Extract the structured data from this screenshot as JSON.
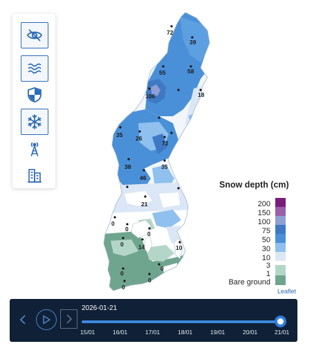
{
  "toolbar": {
    "items": [
      {
        "icon": "eye-slash-icon",
        "active": true
      },
      {
        "icon": "waves-icon",
        "active": true
      },
      {
        "icon": "shield-icon",
        "active": false
      },
      {
        "icon": "snowflake-icon",
        "active": true
      },
      {
        "icon": "radio-tower-icon",
        "active": false
      },
      {
        "icon": "buildings-icon",
        "active": false
      }
    ],
    "accent": "#2d6bb5"
  },
  "map": {
    "region": "Sweden",
    "stations": [
      {
        "value": "72"
      },
      {
        "value": "39"
      },
      {
        "value": "55"
      },
      {
        "value": "58"
      },
      {
        "value": "106"
      },
      {
        "value": "18"
      },
      {
        "value": "35"
      },
      {
        "value": "26"
      },
      {
        "value": "72"
      },
      {
        "value": "38"
      },
      {
        "value": "35"
      },
      {
        "value": "46"
      },
      {
        "value": "21"
      },
      {
        "value": "0"
      },
      {
        "value": "0"
      },
      {
        "value": "0"
      },
      {
        "value": "0"
      },
      {
        "value": "14"
      },
      {
        "value": "10"
      },
      {
        "value": "0"
      },
      {
        "value": "0"
      },
      {
        "value": "0"
      },
      {
        "value": "0"
      }
    ]
  },
  "legend": {
    "title": "Snow depth (cm)",
    "items": [
      {
        "label": "200",
        "color": "#7a1d7a"
      },
      {
        "label": "150",
        "color": "#9a5fa6"
      },
      {
        "label": "100",
        "color": "#8e9fd4"
      },
      {
        "label": "75",
        "color": "#3f79c4"
      },
      {
        "label": "50",
        "color": "#4a90d8"
      },
      {
        "label": "30",
        "color": "#8fc0ee"
      },
      {
        "label": "10",
        "color": "#dbe7f6"
      },
      {
        "label": "3",
        "color": "#ffffff"
      },
      {
        "label": "1",
        "color": "#b4d6c8"
      },
      {
        "label": "Bare ground",
        "color": "#6fa58e"
      }
    ],
    "attribution": "Leaflet"
  },
  "timeline": {
    "current_date": "2026-01-21",
    "ticks": [
      "15/01",
      "16/01",
      "17/01",
      "18/01",
      "19/01",
      "20/01",
      "21/01"
    ],
    "position_fraction": 1.0
  }
}
